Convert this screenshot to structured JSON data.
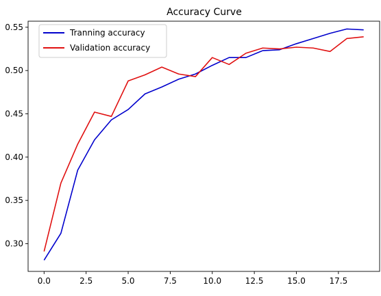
{
  "chart_data": {
    "type": "line",
    "title": "Accuracy Curve",
    "xlabel": "",
    "ylabel": "",
    "xlim": [
      -0.95,
      19.95
    ],
    "ylim": [
      0.268,
      0.557
    ],
    "x_ticks": [
      0.0,
      2.5,
      5.0,
      7.5,
      10.0,
      12.5,
      15.0,
      17.5
    ],
    "x_tick_labels": [
      "0.0",
      "2.5",
      "5.0",
      "7.5",
      "10.0",
      "12.5",
      "15.0",
      "17.5"
    ],
    "y_ticks": [
      0.3,
      0.35,
      0.4,
      0.45,
      0.5,
      0.55
    ],
    "y_tick_labels": [
      "0.30",
      "0.35",
      "0.40",
      "0.45",
      "0.50",
      "0.55"
    ],
    "legend_position": "top-left",
    "grid": false,
    "x": [
      0,
      1,
      2,
      3,
      4,
      5,
      6,
      7,
      8,
      9,
      10,
      11,
      12,
      13,
      14,
      15,
      16,
      17,
      18,
      19
    ],
    "series": [
      {
        "name": "Tranning accuracy",
        "color": "#0000cc",
        "values": [
          0.281,
          0.312,
          0.385,
          0.42,
          0.443,
          0.455,
          0.473,
          0.481,
          0.49,
          0.496,
          0.506,
          0.515,
          0.515,
          0.523,
          0.524,
          0.531,
          0.537,
          0.543,
          0.548,
          0.547
        ]
      },
      {
        "name": "Validation accuracy",
        "color": "#e01010",
        "values": [
          0.291,
          0.37,
          0.415,
          0.452,
          0.447,
          0.488,
          0.495,
          0.504,
          0.496,
          0.493,
          0.515,
          0.507,
          0.52,
          0.526,
          0.525,
          0.527,
          0.526,
          0.522,
          0.537,
          0.539
        ]
      }
    ]
  }
}
